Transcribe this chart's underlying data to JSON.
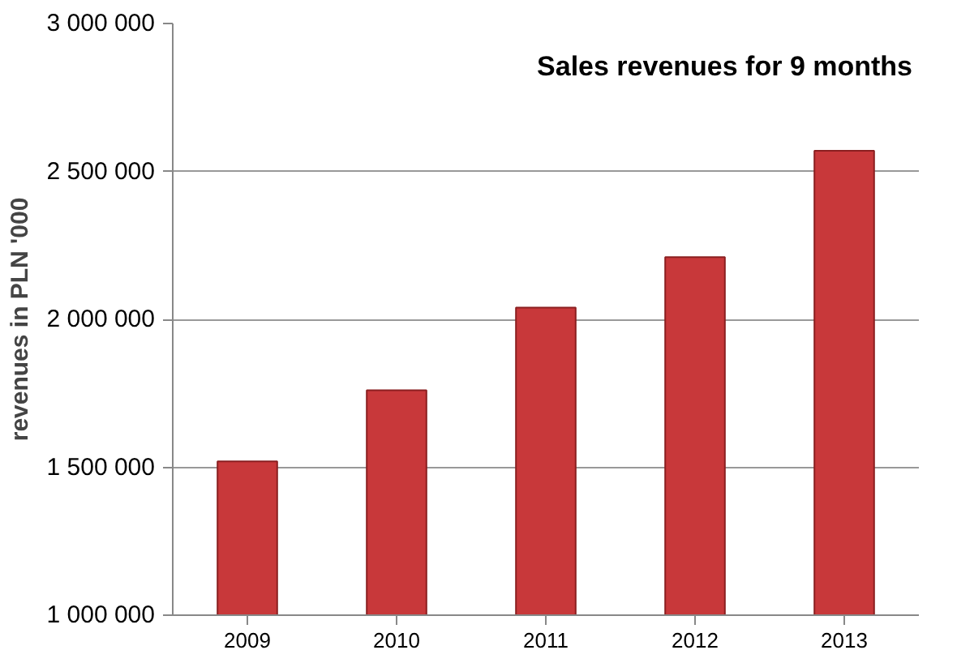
{
  "chart_data": {
    "type": "bar",
    "title": "Sales revenues for 9 months",
    "ylabel": "revenues in PLN '000",
    "categories": [
      "2009",
      "2010",
      "2011",
      "2012",
      "2013"
    ],
    "values": [
      1520000,
      1760000,
      2040000,
      2210000,
      2570000
    ],
    "color": "#c8383a",
    "ylim": [
      1000000,
      3000000
    ],
    "yticks": [
      {
        "value": 1000000,
        "label": "1 000 000"
      },
      {
        "value": 1500000,
        "label": "1 500 000"
      },
      {
        "value": 2000000,
        "label": "2 000 000"
      },
      {
        "value": 2500000,
        "label": "2 500 000"
      },
      {
        "value": 3000000,
        "label": "3 000 000"
      }
    ],
    "grid": "y"
  }
}
